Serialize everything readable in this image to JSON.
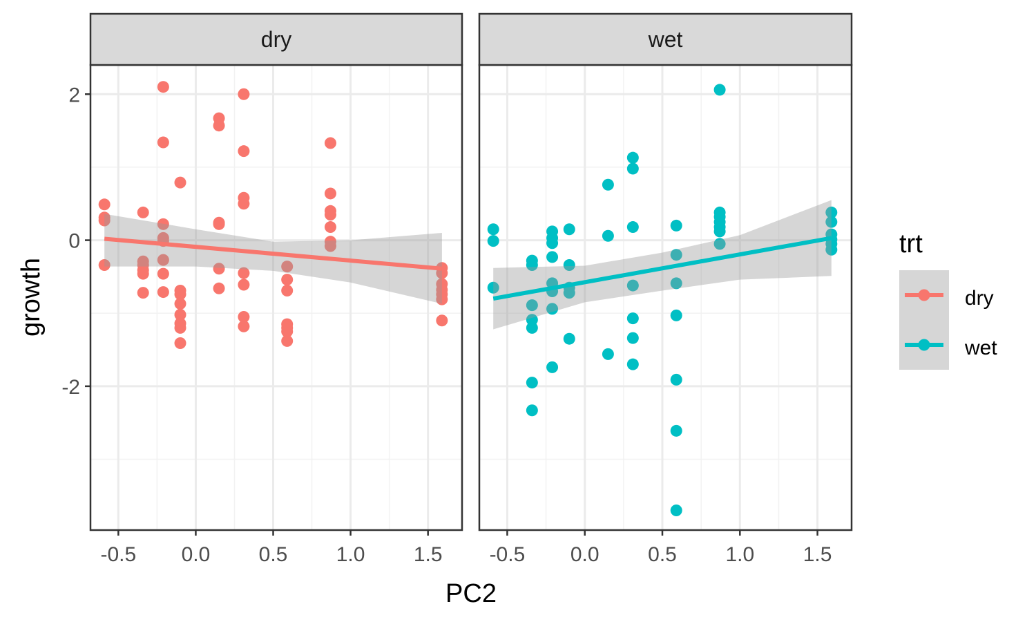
{
  "chart_data": {
    "type": "scatter",
    "facet_by": "trt",
    "xlabel": "PC2",
    "ylabel": "growth",
    "xlim": [
      -0.68,
      1.72
    ],
    "ylim": [
      -3.97,
      2.4
    ],
    "x_ticks": [
      -0.5,
      0.0,
      0.5,
      1.0,
      1.5
    ],
    "x_tick_labels": [
      "-0.5",
      "0.0",
      "0.5",
      "1.0",
      "1.5"
    ],
    "y_ticks": [
      -2,
      0,
      2
    ],
    "y_tick_labels": [
      "-2",
      "0",
      "2"
    ],
    "grid": true,
    "legend": {
      "title": "trt",
      "position": "right",
      "entries": [
        {
          "label": "dry",
          "color": "#F8766D"
        },
        {
          "label": "wet",
          "color": "#00BFC4"
        }
      ]
    },
    "band_color": "#999999",
    "panels": [
      {
        "label": "dry",
        "color": "#F8766D",
        "points": [
          [
            -0.59,
            0.49
          ],
          [
            -0.59,
            0.31
          ],
          [
            -0.59,
            0.27
          ],
          [
            -0.59,
            -0.34
          ],
          [
            -0.34,
            0.38
          ],
          [
            -0.34,
            -0.29
          ],
          [
            -0.34,
            -0.34
          ],
          [
            -0.34,
            -0.41
          ],
          [
            -0.34,
            -0.46
          ],
          [
            -0.34,
            -0.72
          ],
          [
            -0.21,
            2.1
          ],
          [
            -0.21,
            1.34
          ],
          [
            -0.21,
            0.22
          ],
          [
            -0.21,
            0.03
          ],
          [
            -0.21,
            -0.01
          ],
          [
            -0.21,
            -0.27
          ],
          [
            -0.21,
            -0.46
          ],
          [
            -0.21,
            -0.71
          ],
          [
            -0.1,
            0.79
          ],
          [
            -0.1,
            -0.69
          ],
          [
            -0.1,
            -0.74
          ],
          [
            -0.1,
            -0.87
          ],
          [
            -0.1,
            -1.02
          ],
          [
            -0.1,
            -1.14
          ],
          [
            -0.1,
            -1.2
          ],
          [
            -0.1,
            -1.41
          ],
          [
            0.15,
            1.67
          ],
          [
            0.15,
            1.57
          ],
          [
            0.15,
            0.24
          ],
          [
            0.15,
            0.22
          ],
          [
            0.15,
            -0.39
          ],
          [
            0.15,
            -0.66
          ],
          [
            0.31,
            2.0
          ],
          [
            0.31,
            1.22
          ],
          [
            0.31,
            0.58
          ],
          [
            0.31,
            0.5
          ],
          [
            0.31,
            -0.45
          ],
          [
            0.31,
            -0.61
          ],
          [
            0.31,
            -1.05
          ],
          [
            0.31,
            -1.18
          ],
          [
            0.59,
            -0.36
          ],
          [
            0.59,
            -0.54
          ],
          [
            0.59,
            -0.69
          ],
          [
            0.59,
            -1.15
          ],
          [
            0.59,
            -1.2
          ],
          [
            0.59,
            -1.25
          ],
          [
            0.59,
            -1.38
          ],
          [
            0.87,
            1.33
          ],
          [
            0.87,
            0.64
          ],
          [
            0.87,
            0.4
          ],
          [
            0.87,
            0.35
          ],
          [
            0.87,
            0.18
          ],
          [
            0.87,
            -0.02
          ],
          [
            0.87,
            -0.08
          ],
          [
            1.59,
            -0.38
          ],
          [
            1.59,
            -0.45
          ],
          [
            1.59,
            -0.6
          ],
          [
            1.59,
            -0.68
          ],
          [
            1.59,
            -0.74
          ],
          [
            1.59,
            -0.81
          ],
          [
            1.59,
            -1.1
          ]
        ],
        "fit": {
          "x": [
            -0.59,
            1.59
          ],
          "y": [
            0.02,
            -0.39
          ]
        },
        "band": {
          "x": [
            -0.59,
            0.0,
            0.5,
            1.0,
            1.59
          ],
          "lower": [
            -0.36,
            -0.36,
            -0.42,
            -0.58,
            -0.87
          ],
          "upper": [
            0.36,
            0.15,
            -0.02,
            0.0,
            0.1
          ]
        }
      },
      {
        "label": "wet",
        "color": "#00BFC4",
        "points": [
          [
            -0.59,
            0.15
          ],
          [
            -0.59,
            -0.01
          ],
          [
            -0.59,
            -0.65
          ],
          [
            -0.34,
            -0.28
          ],
          [
            -0.34,
            -0.34
          ],
          [
            -0.34,
            -0.89
          ],
          [
            -0.34,
            -1.09
          ],
          [
            -0.34,
            -1.2
          ],
          [
            -0.34,
            -1.95
          ],
          [
            -0.34,
            -2.33
          ],
          [
            -0.21,
            0.12
          ],
          [
            -0.21,
            0.03
          ],
          [
            -0.21,
            -0.04
          ],
          [
            -0.21,
            -0.23
          ],
          [
            -0.21,
            -0.59
          ],
          [
            -0.21,
            -0.7
          ],
          [
            -0.21,
            -0.94
          ],
          [
            -0.21,
            -1.74
          ],
          [
            -0.1,
            0.15
          ],
          [
            -0.1,
            -0.34
          ],
          [
            -0.1,
            -0.65
          ],
          [
            -0.1,
            -0.72
          ],
          [
            -0.1,
            -1.35
          ],
          [
            0.15,
            0.76
          ],
          [
            0.15,
            0.06
          ],
          [
            0.15,
            -1.56
          ],
          [
            0.31,
            1.13
          ],
          [
            0.31,
            0.98
          ],
          [
            0.31,
            0.18
          ],
          [
            0.31,
            -0.62
          ],
          [
            0.31,
            -1.07
          ],
          [
            0.31,
            -1.34
          ],
          [
            0.31,
            -1.7
          ],
          [
            0.59,
            0.2
          ],
          [
            0.59,
            -0.2
          ],
          [
            0.59,
            -0.59
          ],
          [
            0.59,
            -1.03
          ],
          [
            0.59,
            -1.91
          ],
          [
            0.59,
            -2.61
          ],
          [
            0.59,
            -3.7
          ],
          [
            0.87,
            2.06
          ],
          [
            0.87,
            0.38
          ],
          [
            0.87,
            0.32
          ],
          [
            0.87,
            0.25
          ],
          [
            0.87,
            0.18
          ],
          [
            0.87,
            0.12
          ],
          [
            0.87,
            -0.05
          ],
          [
            1.59,
            0.38
          ],
          [
            1.59,
            0.25
          ],
          [
            1.59,
            0.08
          ],
          [
            1.59,
            0.01
          ],
          [
            1.59,
            -0.05
          ],
          [
            1.59,
            -0.13
          ]
        ],
        "fit": {
          "x": [
            -0.59,
            1.59
          ],
          "y": [
            -0.8,
            0.03
          ]
        },
        "band": {
          "x": [
            -0.59,
            0.0,
            0.5,
            1.0,
            1.59
          ],
          "lower": [
            -1.22,
            -0.85,
            -0.69,
            -0.54,
            -0.49
          ],
          "upper": [
            -0.38,
            -0.35,
            -0.17,
            0.07,
            0.55
          ]
        }
      }
    ]
  }
}
